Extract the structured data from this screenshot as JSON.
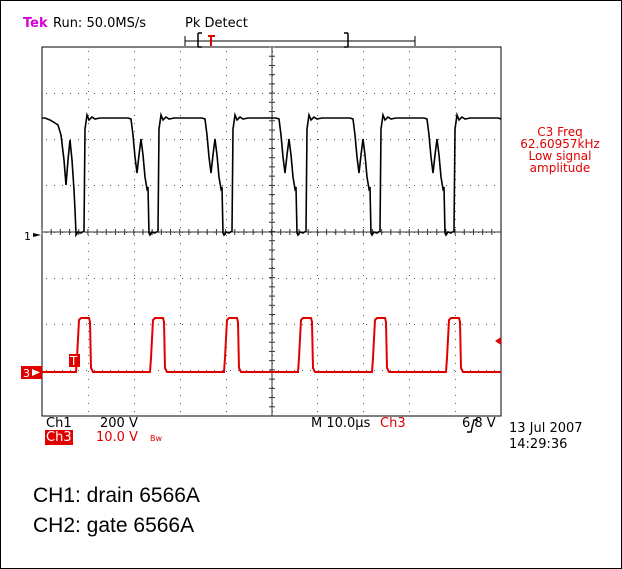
{
  "header": {
    "brand": "Tek",
    "status": "Run: 50.0MS/s",
    "acquisition": "Pk Detect"
  },
  "markers": {
    "ch1": "1",
    "ch3": "3",
    "trigger": "T"
  },
  "measurement": {
    "line1": "C3 Freq",
    "line2": "62.60957kHz",
    "line3": "Low signal",
    "line4": "amplitude"
  },
  "settings": {
    "ch1_label": "Ch1",
    "ch1_scale": "200 V",
    "ch3_label": "Ch3",
    "ch3_scale": "10.0 V",
    "ch3_bw": "Bw",
    "timebase": "M 10.0µs",
    "trig_source": "Ch3",
    "trig_level": "6.8 V",
    "date": "13 Jul 2007",
    "time": "14:29:36"
  },
  "captions": {
    "line1": "CH1: drain 6566A",
    "line2": "CH2: gate 6566A"
  },
  "colors": {
    "ch1": "#000000",
    "ch3": "#e00000",
    "brand": "#d400d4"
  }
}
